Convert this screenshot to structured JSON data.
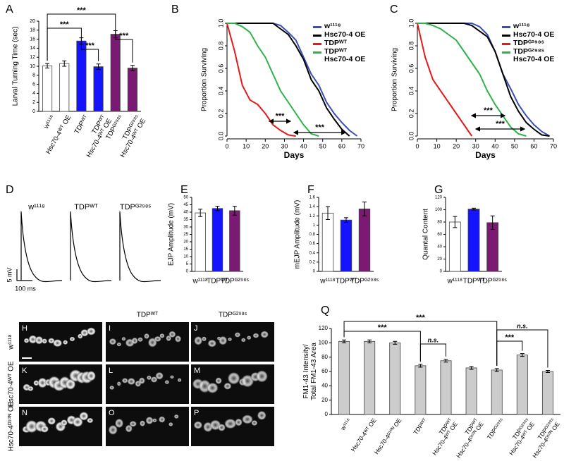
{
  "chart_data": [
    {
      "panel_label": "A",
      "type": "bar",
      "y_label": "Larval Turning Time (sec)",
      "categories": [
        "w¹¹¹⁸",
        "Hsc70-4ᵂᵀ OE",
        "TDPᵂᵀ",
        "TDPᵂᵀ\nHsc70-4ᵂᵀ OE",
        "TDPᴳ²⁹⁸ˢ",
        "TDPᴳ²⁹⁸ˢ\nHsc70-4ᵂᵀ OE"
      ],
      "values": [
        10.1,
        10.6,
        15.6,
        9.9,
        17.1,
        9.6
      ],
      "errors": [
        0.5,
        0.6,
        0.7,
        0.6,
        0.8,
        0.6
      ],
      "colors": [
        "#ffffff",
        "#ffffff",
        "#1414ff",
        "#1414ff",
        "#7b1a72",
        "#7b1a72"
      ],
      "ylim": [
        0,
        20
      ],
      "yticks": [
        0,
        2,
        4,
        6,
        8,
        10,
        12,
        14,
        16,
        18,
        20
      ],
      "annotations": [
        "***",
        "***",
        "***",
        "***"
      ]
    },
    {
      "panel_label": "B",
      "type": "survival",
      "y_label": "Proportion Surviving",
      "x_label": "Days",
      "x": [
        0,
        4,
        8,
        12,
        16,
        20,
        24,
        28,
        32,
        36,
        40,
        44,
        48,
        52,
        56,
        60,
        64,
        68
      ],
      "series": [
        {
          "name": "w¹¹¹⁸",
          "color": "#3a4fb5",
          "values": [
            1,
            1,
            1,
            1,
            1,
            1,
            1,
            0.98,
            0.92,
            0.85,
            0.7,
            0.55,
            0.45,
            0.3,
            0.2,
            0.12,
            0.05,
            0
          ]
        },
        {
          "name": "Hsc70-4 OE",
          "color": "#000000",
          "values": [
            1,
            1,
            1,
            1,
            1,
            1,
            1,
            0.95,
            0.9,
            0.8,
            0.68,
            0.5,
            0.4,
            0.25,
            0.15,
            0.06,
            0,
            null
          ]
        },
        {
          "name": "TDPᵂᵀ",
          "color": "#e41a1c",
          "values": [
            1,
            0.75,
            0.45,
            0.32,
            0.28,
            0.2,
            0.1,
            0.05,
            0.01,
            0,
            null,
            null,
            null,
            null,
            null,
            null,
            null,
            null
          ]
        },
        {
          "name": "TDPᵂᵀ\nHsc70-4 OE",
          "color": "#2db34a",
          "values": [
            1,
            1,
            0.97,
            0.92,
            0.8,
            0.7,
            0.55,
            0.4,
            0.3,
            0.2,
            0.1,
            0.02,
            0,
            null,
            null,
            null,
            null,
            null
          ]
        }
      ],
      "xlim": [
        0,
        70
      ],
      "xticks": [
        0,
        10,
        20,
        30,
        40,
        50,
        60,
        70
      ],
      "ylim": [
        0,
        1
      ],
      "yticks": [
        {
          "value": 0,
          "label": "0.0"
        },
        0.2,
        0.4,
        0.6,
        0.8,
        {
          "value": 1,
          "label": "1.0"
        }
      ],
      "annotations": [
        "***",
        "***"
      ]
    },
    {
      "panel_label": "C",
      "type": "survival",
      "y_label": "Proportion Surviving",
      "x_label": "Days",
      "x": [
        0,
        4,
        8,
        12,
        16,
        20,
        24,
        28,
        32,
        36,
        40,
        44,
        48,
        52,
        56,
        60,
        64,
        68
      ],
      "series": [
        {
          "name": "w¹¹¹⁸",
          "color": "#3a4fb5",
          "values": [
            1,
            1,
            1,
            1,
            1,
            1,
            1,
            1,
            0.97,
            0.9,
            0.75,
            0.55,
            0.42,
            0.28,
            0.18,
            0.1,
            0.04,
            0
          ]
        },
        {
          "name": "Hsc70-4 OE",
          "color": "#000000",
          "values": [
            1,
            1,
            1,
            1,
            1,
            1,
            1,
            0.98,
            0.93,
            0.88,
            0.75,
            0.55,
            0.35,
            0.22,
            0.12,
            0.06,
            0.01,
            0
          ]
        },
        {
          "name": "TDPᴳ²⁹⁸ˢ",
          "color": "#e41a1c",
          "values": [
            1,
            0.7,
            0.5,
            0.4,
            0.3,
            0.2,
            0.1,
            0,
            null,
            null,
            null,
            null,
            null,
            null,
            null,
            null,
            null,
            null
          ]
        },
        {
          "name": "TDPᴳ²⁹⁸ˢ\nHsc70-4 OE",
          "color": "#2db34a",
          "values": [
            1,
            1,
            0.98,
            0.95,
            0.9,
            0.85,
            0.75,
            0.65,
            0.55,
            0.4,
            0.28,
            0.18,
            0.08,
            0.02,
            0,
            null,
            null,
            null
          ]
        }
      ],
      "xlim": [
        0,
        70
      ],
      "xticks": [
        0,
        10,
        20,
        30,
        40,
        50,
        60,
        70
      ],
      "ylim": [
        0,
        1
      ],
      "yticks": [
        {
          "value": 0,
          "label": "0.0"
        },
        0.2,
        0.4,
        0.6,
        0.8,
        {
          "value": 1,
          "label": "1.0"
        }
      ],
      "annotations": [
        "***",
        "***"
      ]
    },
    {
      "panel_label": "D",
      "type": "trace",
      "categories": [
        "w¹¹¹⁸",
        "TDPᵂᵀ",
        "TDPᴳ²⁹⁸ˢ"
      ],
      "scale_labels": [
        "5 mV",
        "100 ms"
      ]
    },
    {
      "panel_label": "E",
      "type": "bar",
      "y_label": "EJP Amplitude (mV)",
      "categories": [
        "w¹¹¹⁸",
        "TDPᵂᵀ",
        "TDPᴳ²⁹⁸ˢ"
      ],
      "values": [
        39.5,
        42.5,
        41
      ],
      "errors": [
        2.5,
        1.5,
        3
      ],
      "colors": [
        "#ffffff",
        "#1414ff",
        "#7b1a72"
      ],
      "ylim": [
        0,
        50
      ],
      "yticks": [
        0,
        5,
        10,
        15,
        20,
        25,
        30,
        35,
        40,
        45,
        50
      ]
    },
    {
      "panel_label": "F",
      "type": "bar",
      "y_label": "mEJP Amplitude (mV)",
      "categories": [
        "w¹¹¹⁸",
        "TDPᵂᵀ",
        "TDPᴳ²⁹⁸ˢ"
      ],
      "values": [
        1.26,
        1.11,
        1.35
      ],
      "errors": [
        0.14,
        0.05,
        0.15
      ],
      "colors": [
        "#ffffff",
        "#1414ff",
        "#7b1a72"
      ],
      "ylim": [
        0,
        1.6
      ],
      "yticks": [
        0,
        0.2,
        0.4,
        0.6,
        0.8,
        1,
        1.2,
        1.4,
        1.6
      ]
    },
    {
      "panel_label": "G",
      "type": "bar",
      "y_label": "Quantal Content",
      "categories": [
        "w¹¹¹⁸",
        "TDPᵂᵀ",
        "TDPᴳ²⁹⁸ˢ"
      ],
      "values": [
        80,
        101,
        79
      ],
      "errors": [
        9,
        1.5,
        11
      ],
      "colors": [
        "#ffffff",
        "#1414ff",
        "#7b1a72"
      ],
      "ylim": [
        0,
        120
      ],
      "yticks": [
        0,
        20,
        40,
        60,
        80,
        100,
        120
      ]
    },
    {
      "panel_label": "Q",
      "type": "bar",
      "y_label": "FM1-43 Intensity/\nTotal FM1-43 Area",
      "categories": [
        "w¹¹¹⁸",
        "Hsc70-4ᵂᵀ OE",
        "Hsc70-4ᴰ¹⁰ᴺ OE",
        "TDPᵂᵀ",
        "TDPᵂᵀ\nHsc70-4ᵂᵀ OE",
        "TDPᵂᵀ\nHsc70-4ᴰ¹⁰ᴺ OE",
        "TDPᴳ²⁹⁸ˢ",
        "TDPᴳ²⁹⁸ˢ\nHsc70-4ᵂᵀ OE",
        "TDPᴳ²⁹⁸ˢ\nHsc70-4ᴰ¹⁰ᴺ OE"
      ],
      "values": [
        102,
        102,
        100,
        68,
        75,
        65,
        62,
        83,
        60
      ],
      "errors": [
        2,
        2,
        2,
        2,
        2,
        2,
        2,
        2,
        1.5
      ],
      "colors": [
        "#cccccc",
        "#cccccc",
        "#cccccc",
        "#cccccc",
        "#cccccc",
        "#cccccc",
        "#cccccc",
        "#cccccc",
        "#cccccc"
      ],
      "ylim": [
        0,
        120
      ],
      "yticks": [
        0,
        20,
        40,
        60,
        80,
        100,
        120
      ],
      "annotations": [
        "***",
        "***",
        "n.s.",
        "n.s.",
        "***"
      ]
    }
  ],
  "micrographs": {
    "panels": [
      "H",
      "I",
      "J",
      "K",
      "L",
      "M",
      "N",
      "O",
      "P"
    ],
    "columns": [
      "TDPᵂᵀ",
      "TDPᴳ²⁹⁸ˢ"
    ],
    "rows": [
      "w¹¹¹⁸",
      "Hsc70-4ᵂᵀ OE",
      "Hsc70-4ᴰ¹⁰ᴺ OE"
    ]
  }
}
